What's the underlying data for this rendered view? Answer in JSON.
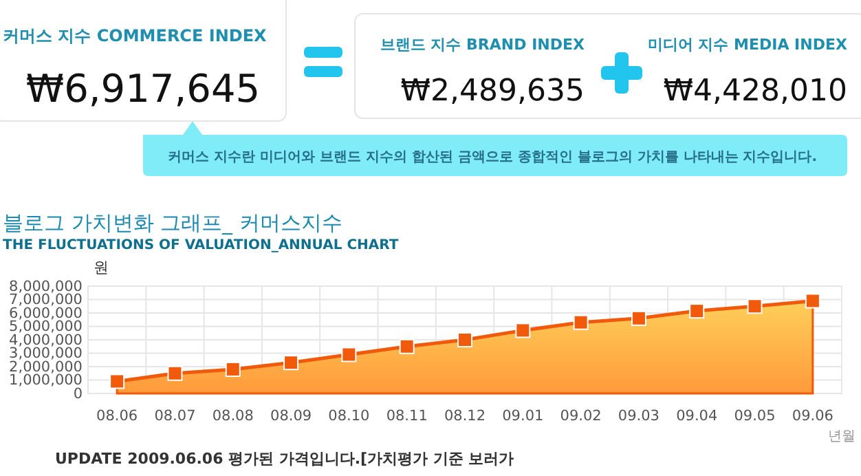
{
  "chart_data": [
    {
      "type": "other",
      "annotations": [
        "커머스 지수 COMMERCE INDEX",
        "₩6,917,645",
        "브랜드 지수 BRAND INDEX",
        "₩2,489,635",
        "미디어 지수 MEDIA INDEX",
        "₩4,428,010",
        "커머스 지수란 미디어와 브랜드 지수의 합산된 금액으로 종합적인 블로그의 가치를 나타내는 지수입니다."
      ]
    },
    {
      "type": "area",
      "title": "블로그 가치변화 그래프_ 커머스지수",
      "subtitle": "THE FLUCTUATIONS OF VALUATION_ANNUAL CHART",
      "ylabel": "원",
      "xlabel": "년월",
      "categories": [
        "08.06",
        "08.07",
        "08.08",
        "08.09",
        "08.10",
        "08.11",
        "08.12",
        "09.01",
        "09.02",
        "09.03",
        "09.04",
        "09.05",
        "09.06"
      ],
      "series": [
        {
          "color": "#f05a0a",
          "values": [
            900000,
            1500000,
            1800000,
            2300000,
            2900000,
            3500000,
            4000000,
            4700000,
            5300000,
            5600000,
            6150000,
            6500000,
            6900000
          ]
        }
      ],
      "ylim": [
        0,
        8000000
      ],
      "yticks": [
        0,
        {
          "value": 1000000,
          "label": "1,000,000"
        },
        {
          "value": 2000000,
          "label": "2,000,000"
        },
        {
          "value": 3000000,
          "label": "3,000,000"
        },
        {
          "value": 4000000,
          "label": "4,000,000"
        },
        {
          "value": 5000000,
          "label": "5,000,000"
        },
        {
          "value": 6000000,
          "label": "6,000,000"
        },
        {
          "value": 7000000,
          "label": "7,000,000"
        },
        {
          "value": 8000000,
          "label": "8,000,000"
        }
      ],
      "grid": true,
      "marker": "square",
      "annotations": [
        "UPDATE 2009.06.06 평가된 가격입니다.[가치평가 기준 보러가"
      ]
    }
  ]
}
